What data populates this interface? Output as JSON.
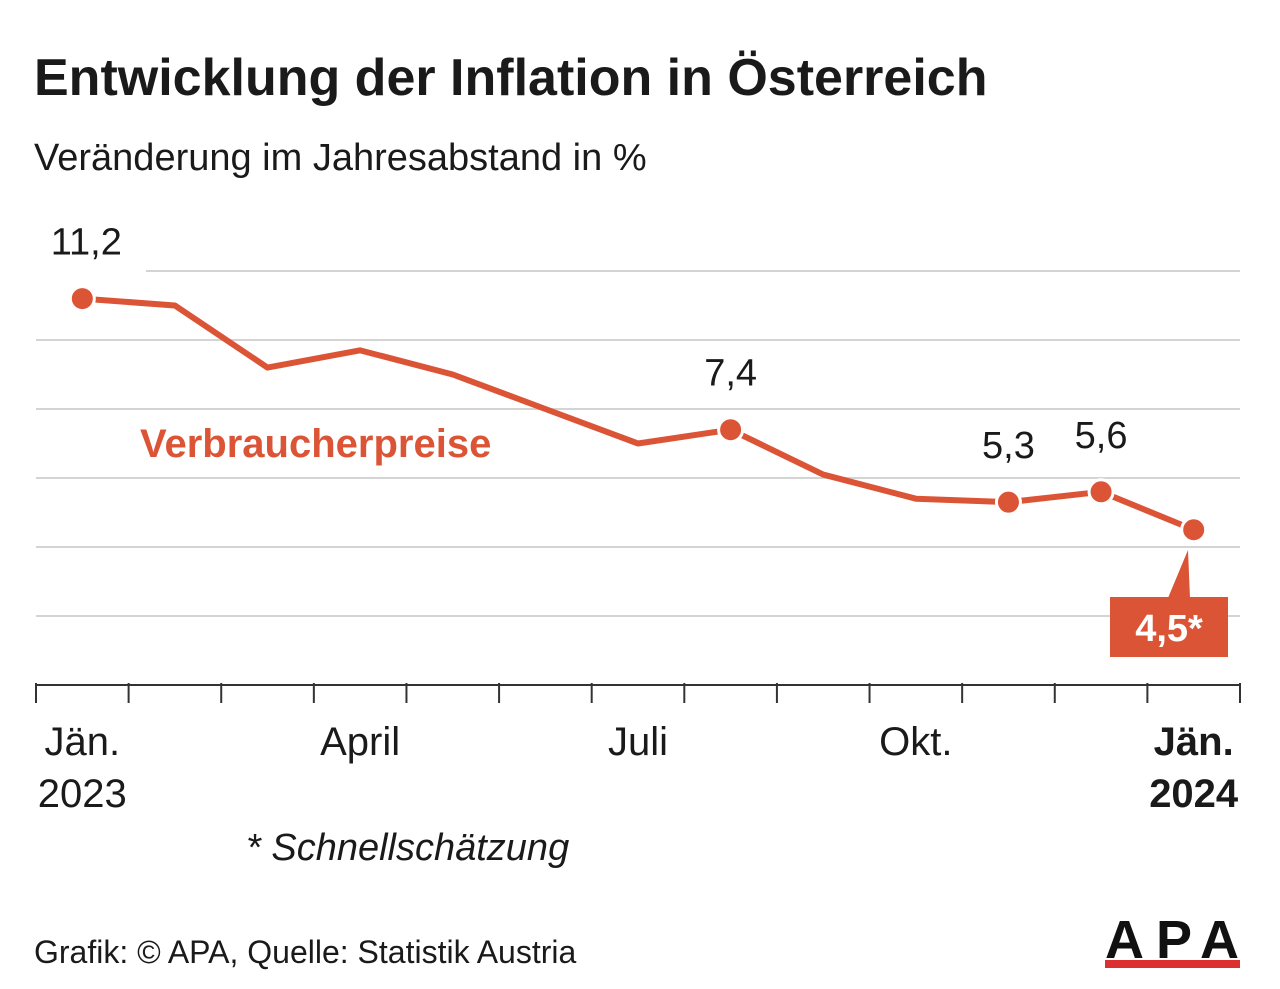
{
  "chart_data": {
    "type": "line",
    "title": "Entwicklung der Inflation in Österreich",
    "subtitle": "Veränderung im Jahresabstand in %",
    "categories": [
      "Jän. 2023",
      null,
      null,
      "April",
      null,
      null,
      "Juli",
      null,
      null,
      "Okt.",
      null,
      null,
      "Jän. 2024"
    ],
    "series": [
      {
        "name": "Verbraucherpreise",
        "color": "#dc5436",
        "values": [
          11.2,
          11.0,
          9.2,
          9.7,
          9.0,
          8.0,
          7.0,
          7.4,
          6.1,
          5.4,
          5.3,
          5.6,
          4.5
        ],
        "value_labels": [
          "11,2",
          null,
          null,
          null,
          null,
          null,
          null,
          "7,4",
          null,
          null,
          "5,3",
          "5,6",
          "4,5*"
        ]
      }
    ],
    "ylim": [
      0,
      12
    ],
    "yticks": [
      0,
      2,
      4,
      6,
      8,
      10,
      12
    ],
    "grid": true,
    "footnote": "* Schnellschätzung",
    "source": "Grafik: © APA, Quelle: Statistik Austria",
    "logo": "APA"
  }
}
